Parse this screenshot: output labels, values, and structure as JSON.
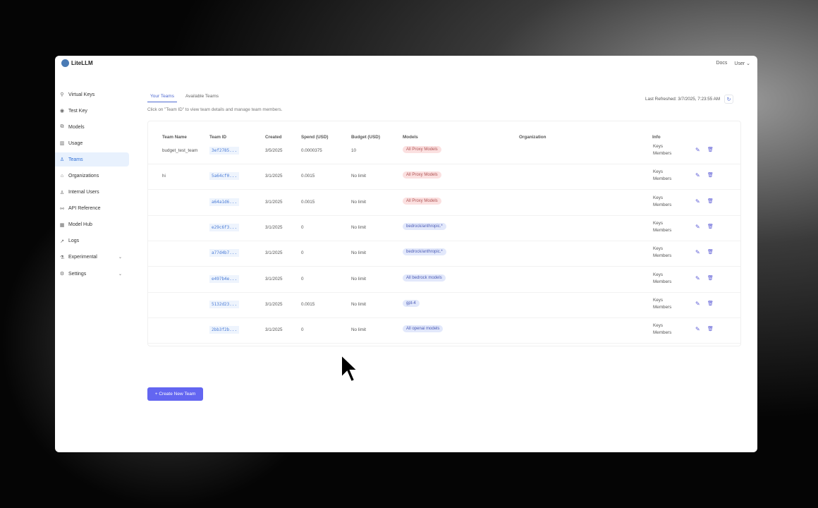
{
  "app": {
    "name": "LiteLLM",
    "docs": "Docs",
    "user": "User"
  },
  "sidebar": {
    "items": [
      {
        "label": "Virtual Keys",
        "icon": "key-icon",
        "glyph": "⚲"
      },
      {
        "label": "Test Key",
        "icon": "play-circle-icon",
        "glyph": "◉"
      },
      {
        "label": "Models",
        "icon": "blocks-icon",
        "glyph": "⧉"
      },
      {
        "label": "Usage",
        "icon": "bar-chart-icon",
        "glyph": "▥"
      },
      {
        "label": "Teams",
        "icon": "team-icon",
        "glyph": "♙",
        "active": true
      },
      {
        "label": "Organizations",
        "icon": "bank-icon",
        "glyph": "⌂"
      },
      {
        "label": "Internal Users",
        "icon": "user-icon",
        "glyph": "♙"
      },
      {
        "label": "API Reference",
        "icon": "api-icon",
        "glyph": "⚯"
      },
      {
        "label": "Model Hub",
        "icon": "apps-icon",
        "glyph": "▦"
      },
      {
        "label": "Logs",
        "icon": "line-chart-icon",
        "glyph": "↗"
      },
      {
        "label": "Experimental",
        "icon": "experiment-icon",
        "glyph": "⚗",
        "chevron": true
      },
      {
        "label": "Settings",
        "icon": "settings-icon",
        "glyph": "⚙",
        "chevron": true
      }
    ]
  },
  "tabs": [
    "Your Teams",
    "Available Teams"
  ],
  "hint": "Click on \"Team ID\" to view team details and manage team members.",
  "last_refreshed": "Last Refreshed: 3/7/2025, 7:23:55 AM",
  "table": {
    "headers": [
      "Team Name",
      "Team ID",
      "Created",
      "Spend (USD)",
      "Budget (USD)",
      "Models",
      "Organization",
      "Info"
    ],
    "rows": [
      {
        "name": "budget_test_team",
        "id": "3ef2785...",
        "created": "3/5/2025",
        "spend": "0.0000375",
        "budget": "10",
        "model": "All Proxy Models",
        "model_color": "red",
        "info1": "Keys",
        "info2": "Members"
      },
      {
        "name": "hi",
        "id": "5a64cf0...",
        "created": "3/1/2025",
        "spend": "0.0015",
        "budget": "No limit",
        "model": "All Proxy Models",
        "model_color": "red",
        "info1": "Keys",
        "info2": "Members"
      },
      {
        "name": "",
        "id": "a64a1d6...",
        "created": "3/1/2025",
        "spend": "0.0015",
        "budget": "No limit",
        "model": "All Proxy Models",
        "model_color": "red",
        "info1": "Keys",
        "info2": "Members"
      },
      {
        "name": "",
        "id": "e29c6f3...",
        "created": "3/1/2025",
        "spend": "0",
        "budget": "No limit",
        "model": "bedrock/anthropic.*",
        "model_color": "blue",
        "info1": "Keys",
        "info2": "Members"
      },
      {
        "name": "",
        "id": "a77d4b7...",
        "created": "3/1/2025",
        "spend": "0",
        "budget": "No limit",
        "model": "bedrock/anthropic.*",
        "model_color": "blue",
        "info1": "Keys",
        "info2": "Members"
      },
      {
        "name": "",
        "id": "e497b4e...",
        "created": "3/1/2025",
        "spend": "0",
        "budget": "No limit",
        "model": "All bedrock models",
        "model_color": "blue",
        "info1": "Keys",
        "info2": "Members"
      },
      {
        "name": "",
        "id": "5132d23...",
        "created": "3/1/2025",
        "spend": "0.0015",
        "budget": "No limit",
        "model": "gpt-4",
        "model_color": "blue",
        "info1": "Keys",
        "info2": "Members"
      },
      {
        "name": "",
        "id": "2bb3f2b...",
        "created": "3/1/2025",
        "spend": "0",
        "budget": "No limit",
        "model": "All openai models",
        "model_color": "blue",
        "info1": "Keys",
        "info2": "Members"
      }
    ]
  },
  "create_button": "+ Create New Team",
  "colors": {
    "accent": "#6366f1",
    "active_bg": "#e8f1fd"
  }
}
